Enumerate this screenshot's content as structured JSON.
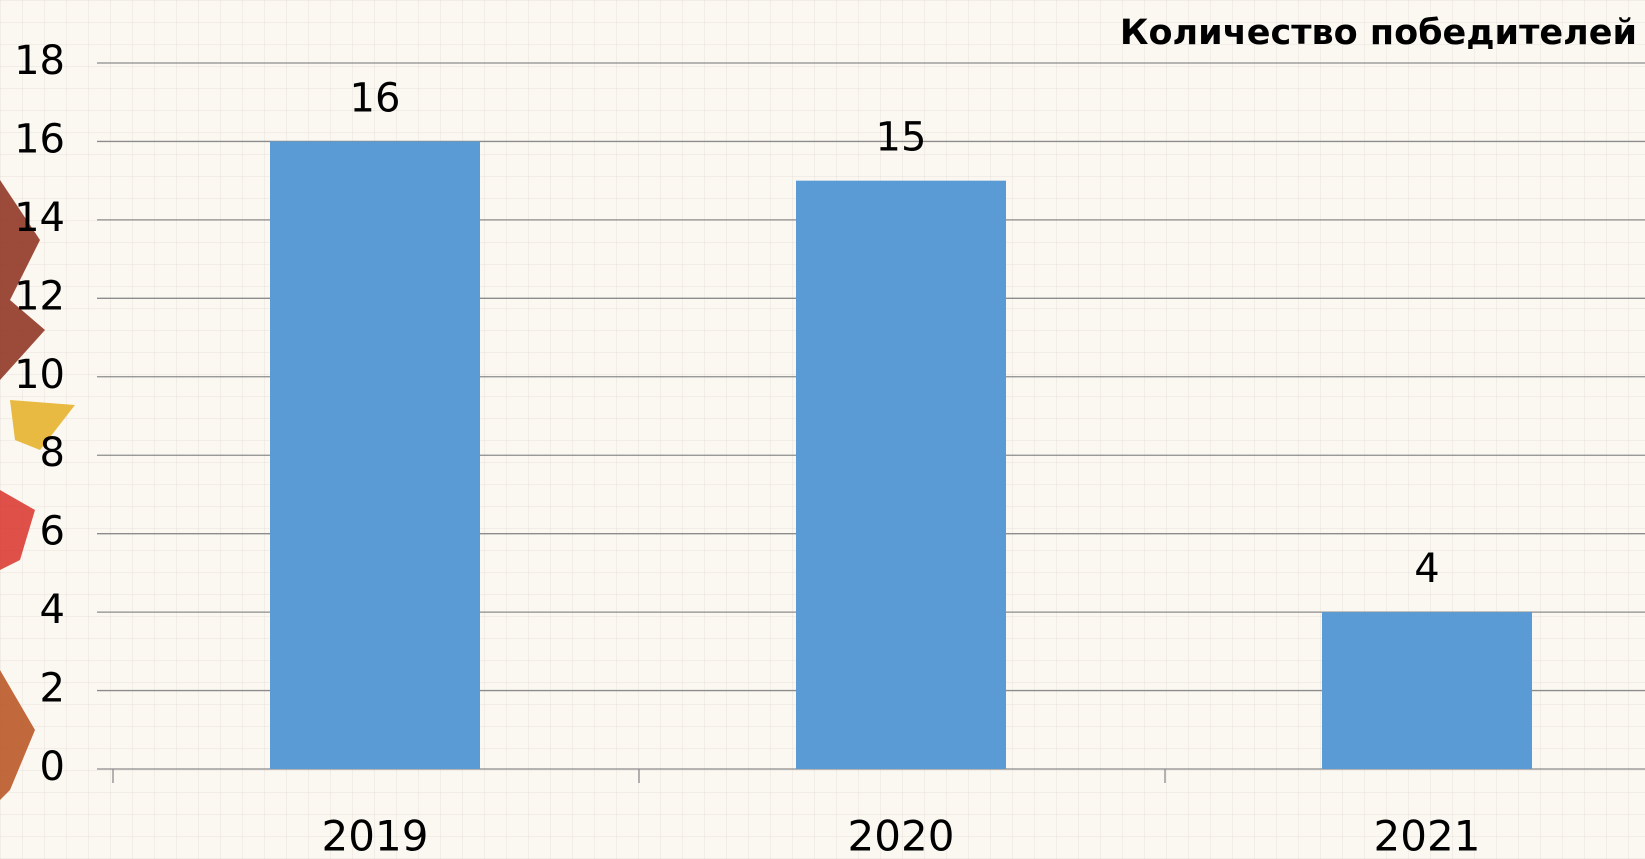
{
  "chart_data": {
    "type": "bar",
    "title": "Количество победителей",
    "categories": [
      "2019",
      "2020",
      "2021"
    ],
    "values": [
      16,
      15,
      4
    ],
    "color": "#5b9bd5",
    "ylim": [
      0,
      18
    ],
    "yticks": [
      0,
      2,
      4,
      6,
      8,
      10,
      12,
      14,
      16,
      18
    ],
    "grid": true
  }
}
